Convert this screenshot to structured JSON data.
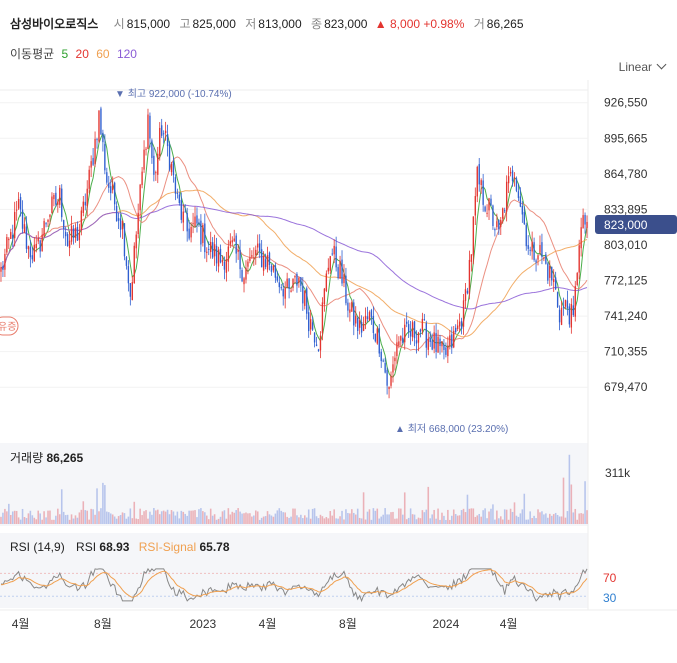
{
  "header": {
    "name": "삼성바이오로직스",
    "open_label": "시",
    "open": "815,000",
    "high_label": "고",
    "high": "825,000",
    "low_label": "저",
    "low": "813,000",
    "close_label": "종",
    "close": "823,000",
    "change": "▲ 8,000 +0.98%",
    "volume_label": "거",
    "volume": "86,265"
  },
  "ma_legend": {
    "label": "이동평균",
    "periods": [
      "5",
      "20",
      "60",
      "120"
    ]
  },
  "scale_mode": "Linear",
  "colors": {
    "up": "#e3342f",
    "down": "#2f5fd0",
    "ma5": "#2ca02c",
    "ma20": "#e87c6c",
    "ma60": "#f0a050",
    "ma120": "#8a5cd6",
    "badge": "#3b4f8c",
    "annot": "#5a6fb0",
    "volume": "#d8b0c0",
    "rsi": "#888888",
    "signal": "#f0a050"
  },
  "annotations": {
    "max": "최고 922,000 (-10.74%)",
    "min": "최저 668,000 (23.20%)",
    "left_badge": "유증",
    "price_badge": "823,000"
  },
  "volume_panel": {
    "label": "거래량",
    "value": "86,265",
    "axis_label": "311k"
  },
  "rsi_panel": {
    "label": "RSI (14,9)",
    "rsi_name": "RSI",
    "rsi_value": "68.93",
    "signal_name": "RSI-Signal",
    "signal_value": "65.78",
    "levels": [
      "70",
      "30"
    ]
  },
  "chart_data": {
    "type": "candlestick",
    "x_ticks": [
      "4월",
      "8월",
      "2023",
      "4월",
      "8월",
      "2024",
      "4월"
    ],
    "y_ticks": [
      926550,
      895665,
      864780,
      833895,
      803010,
      772125,
      741240,
      710355,
      679470
    ],
    "ylim": [
      664000,
      935000
    ],
    "series": [
      {
        "name": "5",
        "kind": "ma"
      },
      {
        "name": "20",
        "kind": "ma"
      },
      {
        "name": "60",
        "kind": "ma"
      },
      {
        "name": "120",
        "kind": "ma"
      }
    ],
    "close_path": [
      [
        0,
        780000
      ],
      [
        5,
        810000
      ],
      [
        9,
        835000
      ],
      [
        14,
        800000
      ],
      [
        18,
        795000
      ],
      [
        24,
        830000
      ],
      [
        30,
        845000
      ],
      [
        34,
        805000
      ],
      [
        40,
        815000
      ],
      [
        45,
        860000
      ],
      [
        50,
        915000
      ],
      [
        54,
        860000
      ],
      [
        58,
        840000
      ],
      [
        62,
        820000
      ],
      [
        66,
        760000
      ],
      [
        70,
        830000
      ],
      [
        75,
        915000
      ],
      [
        78,
        860000
      ],
      [
        82,
        905000
      ],
      [
        86,
        880000
      ],
      [
        90,
        840000
      ],
      [
        95,
        815000
      ],
      [
        100,
        820000
      ],
      [
        106,
        800000
      ],
      [
        112,
        790000
      ],
      [
        118,
        800000
      ],
      [
        124,
        780000
      ],
      [
        130,
        795000
      ],
      [
        136,
        790000
      ],
      [
        141,
        775000
      ],
      [
        147,
        760000
      ],
      [
        152,
        775000
      ],
      [
        157,
        740000
      ],
      [
        162,
        720000
      ],
      [
        168,
        800000
      ],
      [
        173,
        780000
      ],
      [
        178,
        745000
      ],
      [
        183,
        730000
      ],
      [
        188,
        740000
      ],
      [
        193,
        720000
      ],
      [
        198,
        675000
      ],
      [
        202,
        720000
      ],
      [
        208,
        725000
      ],
      [
        214,
        730000
      ],
      [
        220,
        720000
      ],
      [
        226,
        705000
      ],
      [
        232,
        725000
      ],
      [
        236,
        745000
      ],
      [
        240,
        800000
      ],
      [
        243,
        860000
      ],
      [
        246,
        845000
      ],
      [
        250,
        830000
      ],
      [
        254,
        810000
      ],
      [
        258,
        850000
      ],
      [
        262,
        870000
      ],
      [
        266,
        830000
      ],
      [
        270,
        795000
      ],
      [
        274,
        800000
      ],
      [
        278,
        785000
      ],
      [
        282,
        770000
      ],
      [
        285,
        745000
      ],
      [
        289,
        750000
      ],
      [
        292,
        735000
      ],
      [
        295,
        810000
      ],
      [
        298,
        823000
      ]
    ],
    "extremes": {
      "max": 922000,
      "min": 668000,
      "last": 823000
    }
  }
}
